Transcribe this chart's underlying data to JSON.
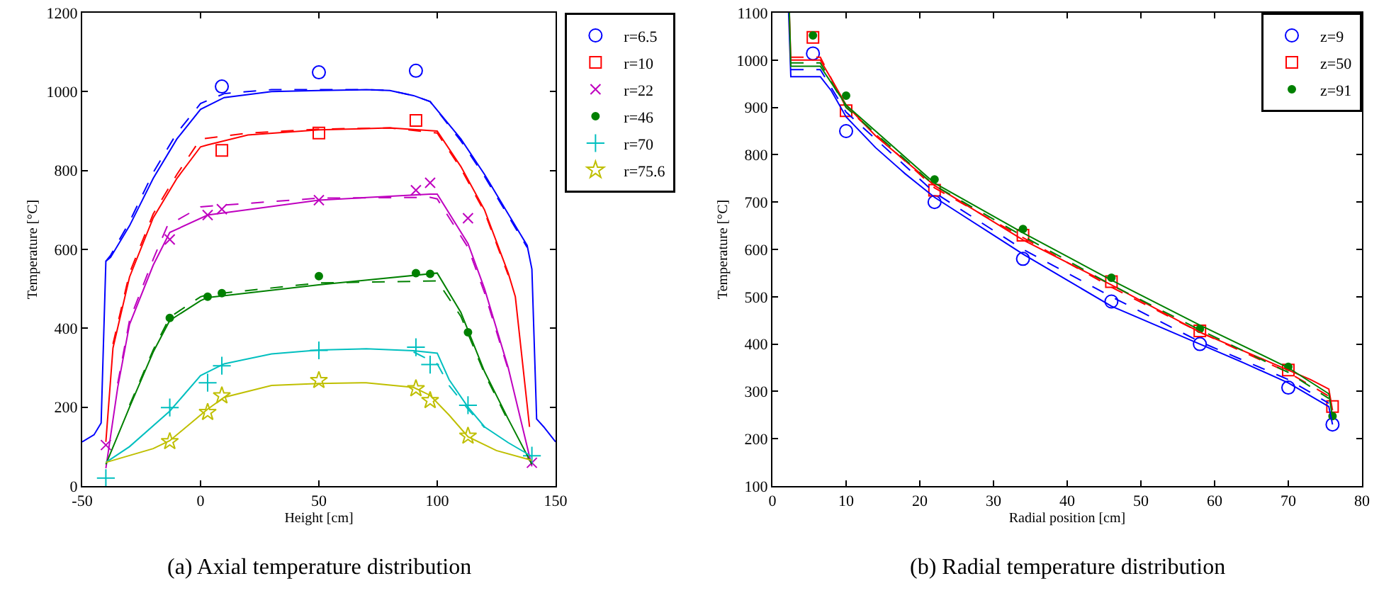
{
  "chart_data": [
    {
      "type": "line",
      "xlabel": "Height [cm]",
      "ylabel": "Temperature [°C]",
      "annotations": [
        "(a) Axial temperature distribution"
      ],
      "xlim": [
        -50,
        150
      ],
      "xticks": [
        -50,
        0,
        50,
        100,
        150
      ],
      "ylim": [
        0,
        1200
      ],
      "yticks": [
        0,
        200,
        400,
        600,
        800,
        1000,
        1200
      ],
      "grid": false,
      "legend": "right",
      "series": [
        {
          "name": "r=6.5",
          "type": "scatter",
          "marker": "circle",
          "color": "#0000ff",
          "x": [
            9,
            50,
            91
          ],
          "values": [
            1013,
            1049,
            1053
          ]
        },
        {
          "name": "r=10",
          "type": "scatter",
          "marker": "square",
          "color": "#ff0000",
          "x": [
            9,
            50,
            91
          ],
          "values": [
            851,
            895,
            927
          ]
        },
        {
          "name": "r=22",
          "type": "scatter",
          "marker": "x",
          "color": "#bf00bf",
          "x": [
            -40,
            -13,
            3,
            9,
            50,
            91,
            97,
            113,
            140
          ],
          "values": [
            104,
            625,
            687,
            702,
            725,
            750,
            769,
            679,
            59
          ]
        },
        {
          "name": "r=46",
          "type": "scatter",
          "marker": "point",
          "color": "#008000",
          "x": [
            -13,
            3,
            9,
            50,
            91,
            97,
            113
          ],
          "values": [
            426,
            480,
            489,
            532,
            540,
            538,
            390
          ]
        },
        {
          "name": "r=70",
          "type": "scatter",
          "marker": "plus",
          "color": "#00bfbf",
          "x": [
            -40,
            -13,
            3,
            9,
            50,
            91,
            97,
            113,
            140
          ],
          "values": [
            20,
            199,
            262,
            305,
            344,
            352,
            308,
            205,
            77
          ]
        },
        {
          "name": "r=75.6",
          "type": "scatter",
          "marker": "star",
          "color": "#bfbf00",
          "x": [
            -13,
            3,
            9,
            50,
            91,
            97,
            113
          ],
          "values": [
            113,
            187,
            229,
            268,
            247,
            217,
            127
          ]
        },
        {
          "type": "line",
          "line_style": "solid",
          "color": "#0000ff",
          "x": [
            -50,
            -45,
            -42,
            -40,
            -38,
            -30,
            -20,
            -10,
            0,
            10,
            30,
            50,
            70,
            80,
            90,
            97,
            110,
            120,
            130,
            135,
            138,
            140,
            142,
            145,
            150
          ],
          "values": [
            112,
            130,
            160,
            570,
            580,
            660,
            780,
            880,
            955,
            985,
            1000,
            1003,
            1005,
            1003,
            990,
            975,
            880,
            790,
            690,
            640,
            610,
            550,
            170,
            150,
            112
          ]
        },
        {
          "type": "line",
          "line_style": "dashed",
          "color": "#0000ff",
          "x": [
            -40,
            -38,
            -30,
            -20,
            -10,
            0,
            10,
            30,
            50,
            70,
            80,
            90,
            97,
            110,
            120,
            130,
            138
          ],
          "values": [
            570,
            585,
            670,
            795,
            895,
            970,
            995,
            1005,
            1005,
            1005,
            1003,
            990,
            975,
            875,
            785,
            685,
            605
          ]
        },
        {
          "type": "line",
          "line_style": "solid",
          "color": "#ff0000",
          "x": [
            -40,
            -37,
            -30,
            -20,
            -10,
            0,
            3,
            20,
            50,
            80,
            100,
            110,
            120,
            130,
            133,
            139
          ],
          "values": [
            112,
            350,
            530,
            680,
            780,
            860,
            865,
            890,
            903,
            908,
            900,
            810,
            700,
            540,
            480,
            150
          ]
        },
        {
          "type": "line",
          "line_style": "dashed",
          "color": "#ff0000",
          "x": [
            -37,
            -30,
            -20,
            -10,
            0,
            3,
            20,
            50,
            80,
            100,
            110,
            120,
            130
          ],
          "values": [
            360,
            540,
            690,
            790,
            880,
            882,
            895,
            905,
            908,
            895,
            805,
            695,
            535
          ]
        },
        {
          "type": "line",
          "line_style": "solid",
          "color": "#bf00bf",
          "x": [
            -40,
            -35,
            -30,
            -20,
            -13,
            3,
            50,
            97,
            100,
            113,
            120,
            130,
            140
          ],
          "values": [
            45,
            250,
            410,
            560,
            643,
            687,
            725,
            740,
            740,
            615,
            500,
            300,
            50
          ]
        },
        {
          "type": "line",
          "line_style": "dashed",
          "color": "#bf00bf",
          "x": [
            -35,
            -30,
            -20,
            -14,
            0,
            50,
            97,
            100,
            113,
            120,
            130
          ],
          "values": [
            260,
            420,
            575,
            660,
            708,
            730,
            732,
            728,
            605,
            490,
            295
          ]
        },
        {
          "type": "line",
          "line_style": "solid",
          "color": "#008000",
          "x": [
            -40,
            -30,
            -20,
            -13,
            0,
            3,
            50,
            100,
            110,
            120,
            130,
            140
          ],
          "values": [
            55,
            200,
            340,
            420,
            470,
            478,
            510,
            540,
            440,
            290,
            170,
            55
          ]
        },
        {
          "type": "line",
          "line_style": "dashed",
          "color": "#008000",
          "x": [
            -30,
            -20,
            -13,
            0,
            3,
            50,
            100,
            110,
            120,
            130
          ],
          "values": [
            205,
            345,
            428,
            480,
            485,
            515,
            520,
            430,
            285,
            165
          ]
        },
        {
          "type": "line",
          "line_style": "solid",
          "color": "#00bfbf",
          "x": [
            -40,
            -30,
            -13,
            0,
            10,
            30,
            50,
            70,
            90,
            100,
            105,
            113,
            120,
            130,
            140
          ],
          "values": [
            60,
            100,
            190,
            280,
            310,
            335,
            345,
            348,
            343,
            337,
            270,
            200,
            150,
            110,
            75
          ]
        },
        {
          "type": "line",
          "line_style": "dashed",
          "color": "#00bfbf",
          "x": [
            90,
            100,
            105,
            113,
            120
          ],
          "values": [
            340,
            310,
            255,
            195,
            148
          ]
        },
        {
          "type": "line",
          "line_style": "solid",
          "color": "#bfbf00",
          "x": [
            -40,
            -20,
            -13,
            0,
            3,
            10,
            30,
            50,
            70,
            90,
            97,
            105,
            113,
            125,
            140
          ],
          "values": [
            60,
            95,
            115,
            180,
            195,
            225,
            255,
            260,
            262,
            250,
            230,
            180,
            125,
            90,
            65
          ]
        }
      ]
    },
    {
      "type": "line",
      "xlabel": "Radial position [cm]",
      "ylabel": "Temperature [°C]",
      "annotations": [
        "(b) Radial temperature distribution"
      ],
      "xlim": [
        0,
        80
      ],
      "xticks": [
        0,
        10,
        20,
        30,
        40,
        50,
        60,
        70,
        80
      ],
      "ylim": [
        100,
        1100
      ],
      "yticks": [
        100,
        200,
        300,
        400,
        500,
        600,
        700,
        800,
        900,
        1000,
        1100
      ],
      "grid": false,
      "legend": "top right",
      "series": [
        {
          "name": "z=9",
          "type": "scatter",
          "marker": "circle",
          "color": "#0000ff",
          "x": [
            5.5,
            10,
            22,
            34,
            46,
            58,
            70,
            76
          ],
          "values": [
            1014,
            850,
            700,
            580,
            490,
            400,
            308,
            230
          ]
        },
        {
          "name": "z=50",
          "type": "scatter",
          "marker": "square",
          "color": "#ff0000",
          "x": [
            5.5,
            10,
            22,
            34,
            46,
            58,
            70,
            76
          ],
          "values": [
            1048,
            893,
            725,
            630,
            532,
            428,
            345,
            268
          ]
        },
        {
          "name": "z=91",
          "type": "scatter",
          "marker": "point",
          "color": "#008000",
          "x": [
            5.5,
            10,
            22,
            34,
            46,
            58,
            70,
            76
          ],
          "values": [
            1052,
            925,
            748,
            643,
            540,
            432,
            352,
            248
          ]
        },
        {
          "type": "line",
          "line_style": "solid",
          "color": "#0000ff",
          "x": [
            2.2,
            2.5,
            6.5,
            8,
            10,
            14,
            18,
            22,
            26,
            30,
            34,
            40,
            46,
            52,
            58,
            64,
            70,
            75.5,
            76
          ],
          "values": [
            1100,
            965,
            965,
            935,
            880,
            815,
            760,
            710,
            670,
            630,
            590,
            535,
            480,
            440,
            400,
            360,
            318,
            268,
            230
          ]
        },
        {
          "type": "line",
          "line_style": "dashed",
          "color": "#0000ff",
          "x": [
            2.5,
            6.5,
            10,
            22,
            34,
            46,
            58,
            70,
            75.5
          ],
          "values": [
            980,
            980,
            890,
            720,
            600,
            500,
            405,
            325,
            275
          ]
        },
        {
          "type": "line",
          "line_style": "solid",
          "color": "#ff0000",
          "x": [
            2.3,
            2.5,
            6.5,
            8,
            10,
            14,
            22,
            34,
            46,
            58,
            70,
            73,
            75.5,
            76
          ],
          "values": [
            1100,
            1000,
            1000,
            960,
            905,
            840,
            735,
            620,
            525,
            425,
            345,
            325,
            305,
            260
          ]
        },
        {
          "type": "line",
          "line_style": "dashed",
          "color": "#ff0000",
          "x": [
            2.5,
            6.5,
            10,
            22,
            34,
            46,
            58,
            70,
            75.5
          ],
          "values": [
            1006,
            1006,
            900,
            730,
            625,
            520,
            425,
            340,
            290
          ]
        },
        {
          "type": "line",
          "line_style": "solid",
          "color": "#008000",
          "x": [
            2.3,
            2.5,
            6.5,
            10,
            22,
            34,
            46,
            58,
            70,
            75.5,
            76
          ],
          "values": [
            1100,
            987,
            987,
            905,
            740,
            635,
            535,
            440,
            350,
            295,
            245
          ]
        },
        {
          "type": "line",
          "line_style": "dashed",
          "color": "#008000",
          "x": [
            2.5,
            6.5,
            10,
            22,
            34,
            46,
            58,
            70,
            75.5
          ],
          "values": [
            994,
            994,
            900,
            735,
            628,
            525,
            430,
            340,
            285
          ]
        }
      ]
    }
  ]
}
